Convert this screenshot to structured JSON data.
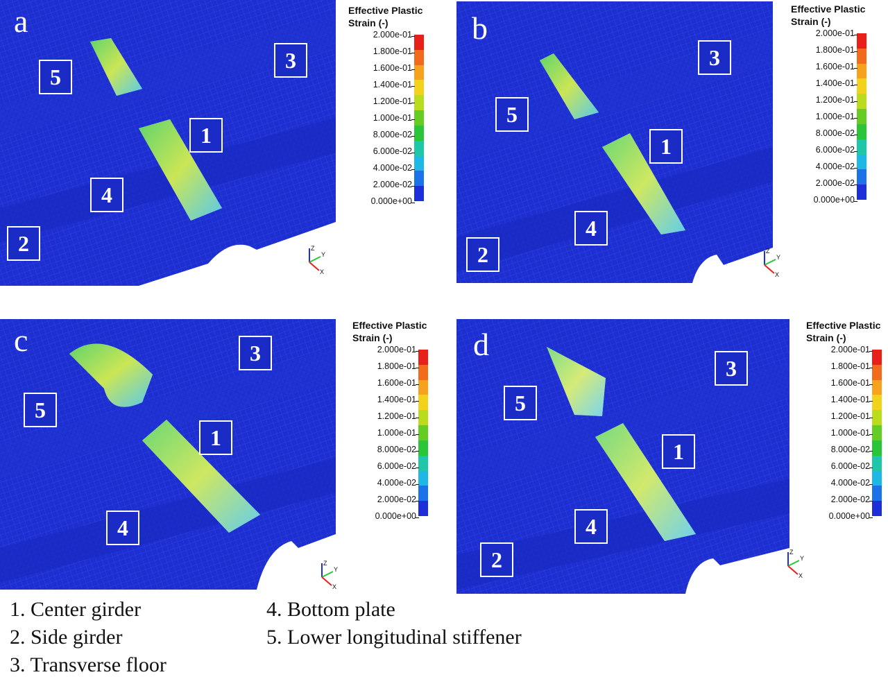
{
  "panels": [
    {
      "letter": "a",
      "labels": [
        {
          "text": "5"
        },
        {
          "text": "3"
        },
        {
          "text": "1"
        },
        {
          "text": "4"
        },
        {
          "text": "2"
        }
      ]
    },
    {
      "letter": "b",
      "labels": [
        {
          "text": "3"
        },
        {
          "text": "5"
        },
        {
          "text": "1"
        },
        {
          "text": "4"
        },
        {
          "text": "2"
        }
      ]
    },
    {
      "letter": "c",
      "labels": [
        {
          "text": "3"
        },
        {
          "text": "5"
        },
        {
          "text": "1"
        },
        {
          "text": "4"
        }
      ]
    },
    {
      "letter": "d",
      "labels": [
        {
          "text": "5"
        },
        {
          "text": "3"
        },
        {
          "text": "1"
        },
        {
          "text": "4"
        },
        {
          "text": "2"
        }
      ]
    }
  ],
  "legend": {
    "title": "Effective Plastic\nStrain (-)",
    "ticks": [
      "2.000e-01",
      "1.800e-01",
      "1.600e-01",
      "1.400e-01",
      "1.200e-01",
      "1.000e-01",
      "8.000e-02",
      "6.000e-02",
      "4.000e-02",
      "2.000e-02",
      "0.000e+00"
    ],
    "colors": [
      "#e8201a",
      "#f26a1c",
      "#f7a21f",
      "#f2d21a",
      "#b9dd1d",
      "#64cc22",
      "#2bc53a",
      "#1fc6a8",
      "#1fb8e6",
      "#1c72e8",
      "#1d2fd8"
    ]
  },
  "axes": {
    "z": "Z",
    "y": "Y",
    "x": "X"
  },
  "captions": [
    "1. Center girder",
    "2. Side girder",
    "3. Transverse floor",
    "4. Bottom plate",
    "5. Lower longitudinal stiffener"
  ]
}
